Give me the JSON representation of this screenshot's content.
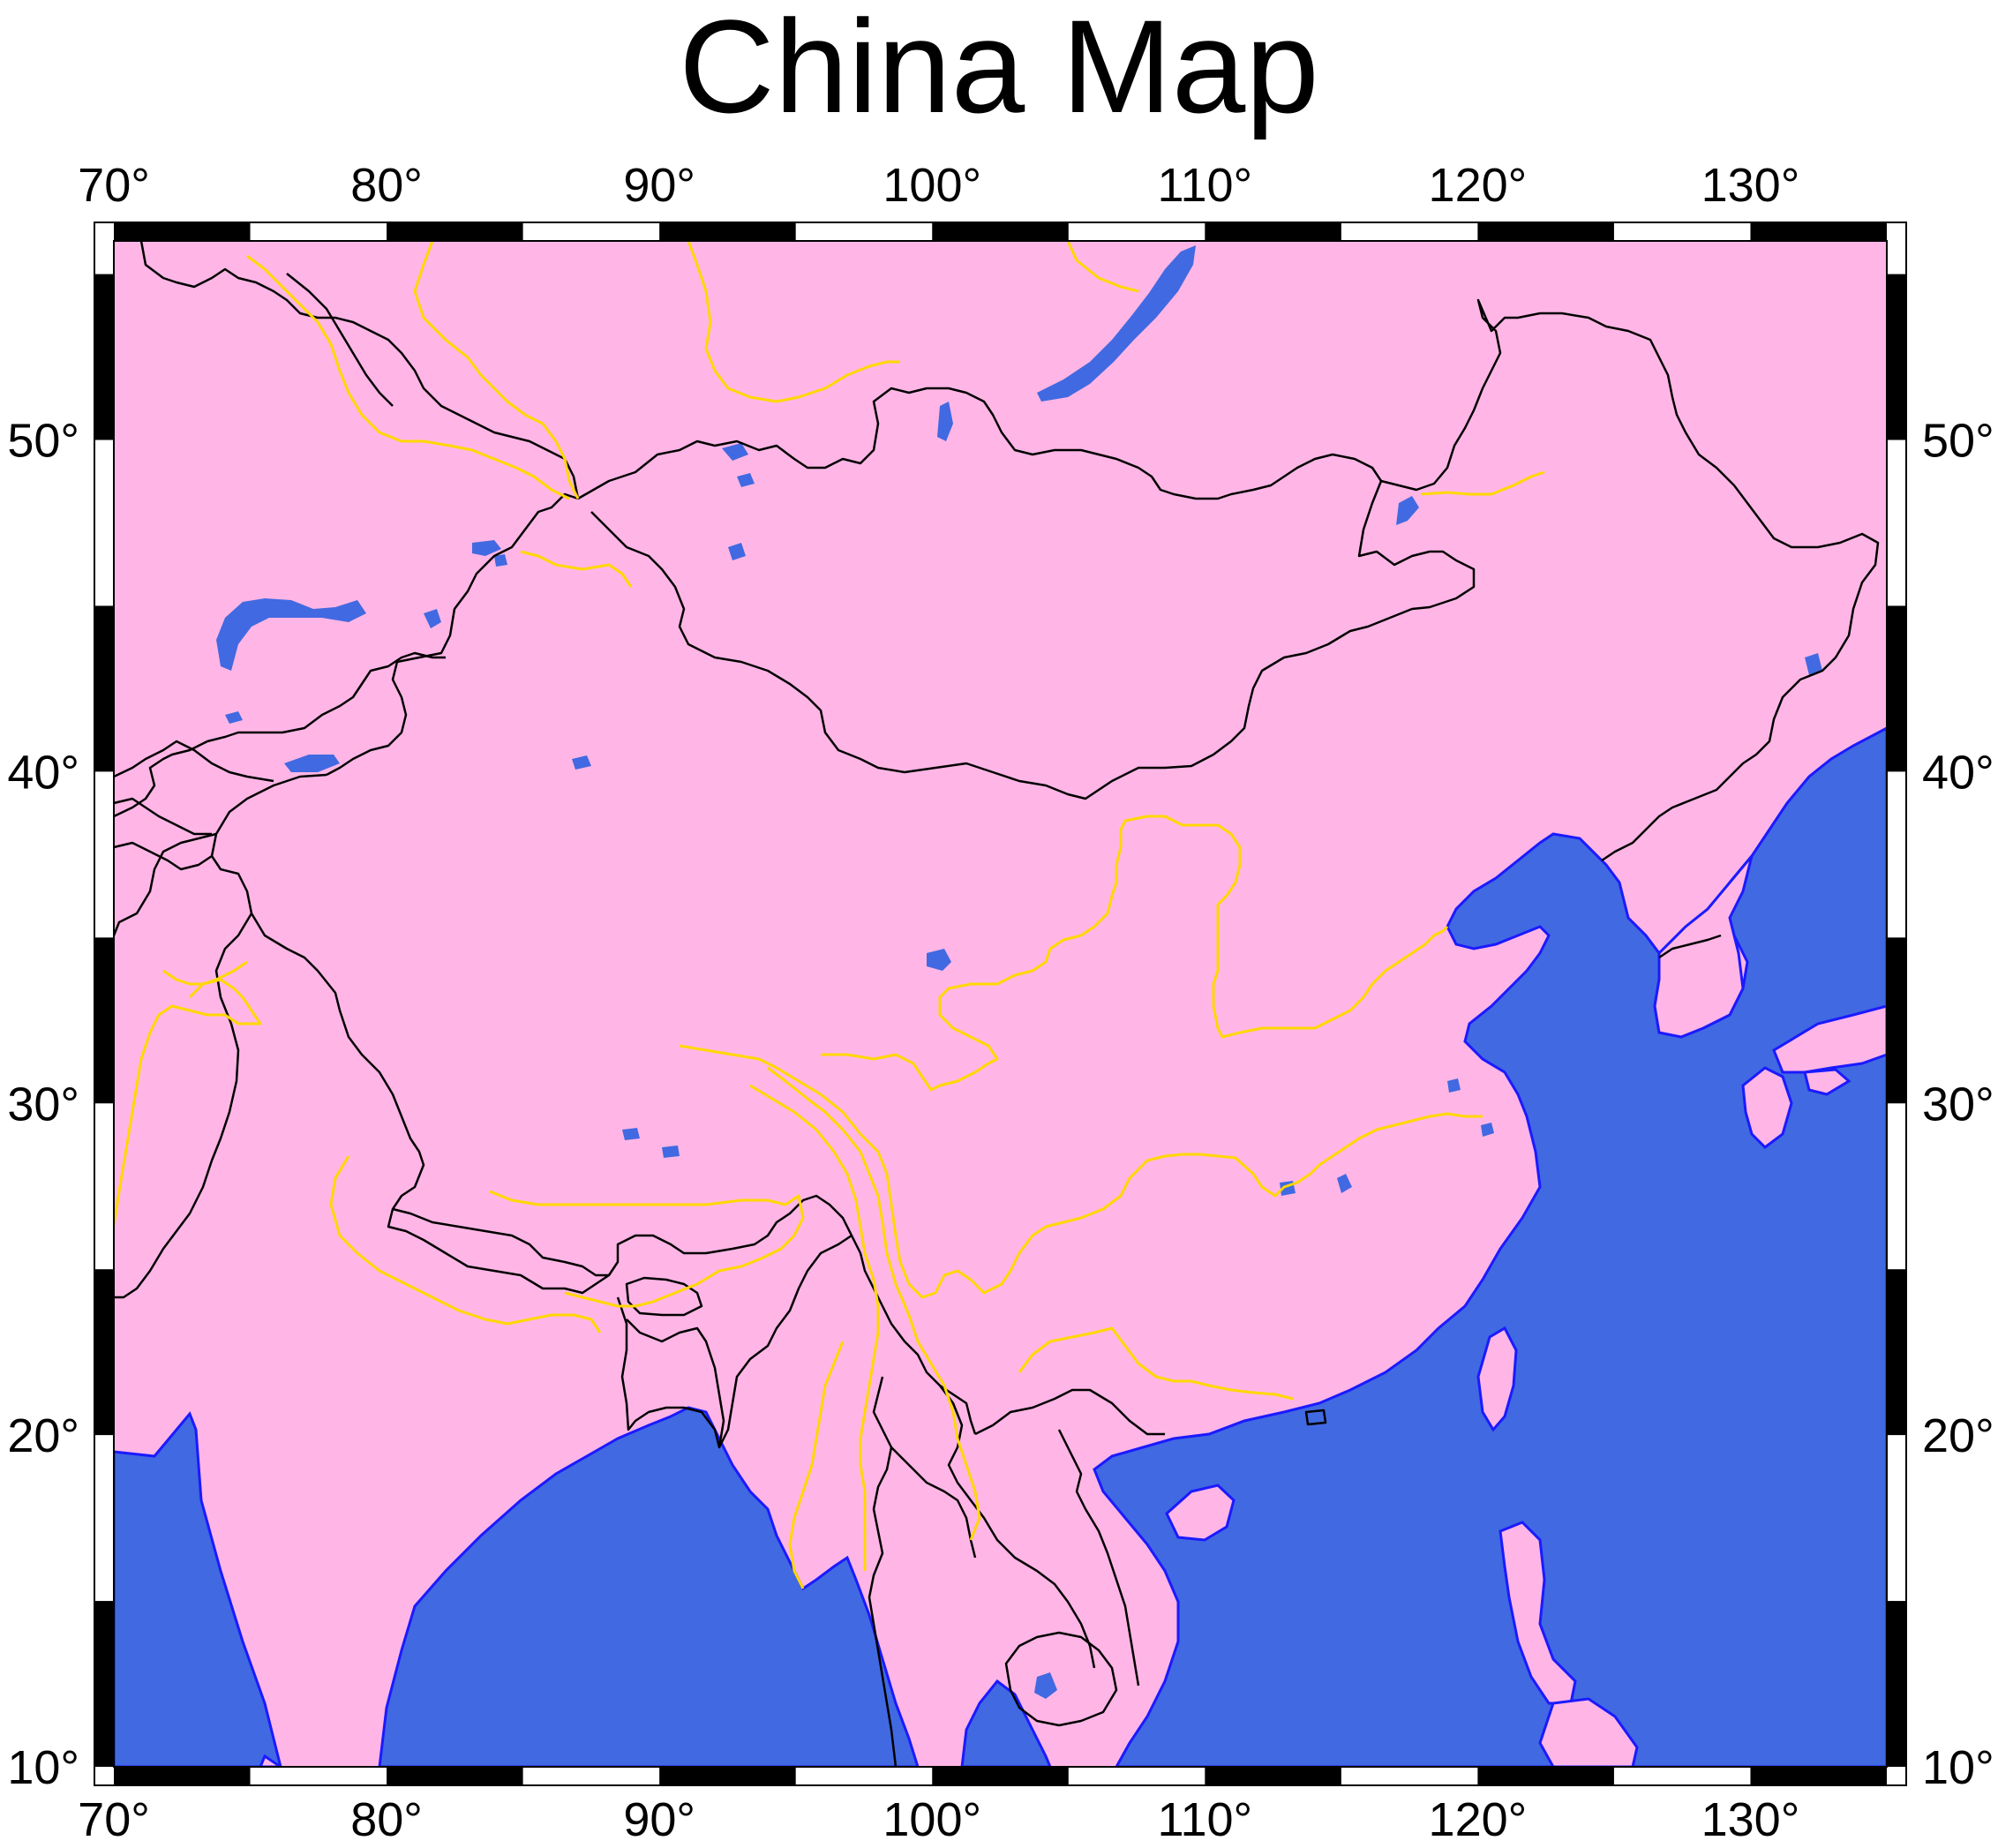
{
  "title": "China Map",
  "colors": {
    "land": "#ffb6e6",
    "water": "#4169e1",
    "coast": "#1a1aff",
    "border": "#000000",
    "river": "#ffd700"
  },
  "axes": {
    "lon": {
      "min": 70,
      "max": 135,
      "ticks": [
        70,
        80,
        90,
        100,
        110,
        120,
        130
      ]
    },
    "lat": {
      "min": 10,
      "max": 56,
      "ticks": [
        10,
        20,
        30,
        40,
        50
      ]
    },
    "degree_symbol": "°"
  },
  "layers": [
    "land",
    "ocean",
    "lakes",
    "national-borders",
    "rivers"
  ]
}
